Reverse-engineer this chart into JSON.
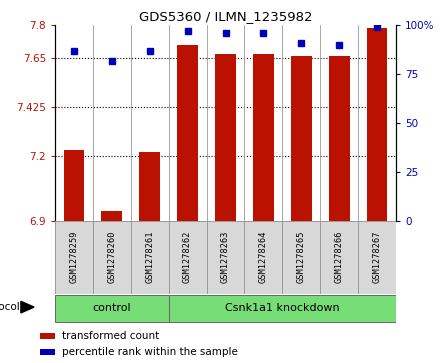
{
  "title": "GDS5360 / ILMN_1235982",
  "samples": [
    "GSM1278259",
    "GSM1278260",
    "GSM1278261",
    "GSM1278262",
    "GSM1278263",
    "GSM1278264",
    "GSM1278265",
    "GSM1278266",
    "GSM1278267"
  ],
  "red_values": [
    7.23,
    6.95,
    7.22,
    7.71,
    7.67,
    7.67,
    7.66,
    7.66,
    7.79
  ],
  "blue_values": [
    87,
    82,
    87,
    97,
    96,
    96,
    91,
    90,
    99
  ],
  "y_min": 6.9,
  "y_max": 7.8,
  "y_ticks": [
    6.9,
    7.2,
    7.425,
    7.65,
    7.8
  ],
  "y_tick_labels": [
    "6.9",
    "7.2",
    "7.425",
    "7.65",
    "7.8"
  ],
  "y2_ticks": [
    0,
    25,
    50,
    75,
    100
  ],
  "y2_tick_labels": [
    "0",
    "25",
    "50",
    "75",
    "100%"
  ],
  "bar_color": "#bb1100",
  "dot_color": "#0000bb",
  "bar_width": 0.55,
  "plot_bg": "#ffffff",
  "cell_bg": "#d8d8d8",
  "cell_edge": "#999999",
  "group_green": "#77dd77",
  "legend_items": [
    "transformed count",
    "percentile rank within the sample"
  ],
  "legend_colors": [
    "#bb1100",
    "#0000bb"
  ],
  "ctrl_n": 3,
  "kd_n": 6
}
